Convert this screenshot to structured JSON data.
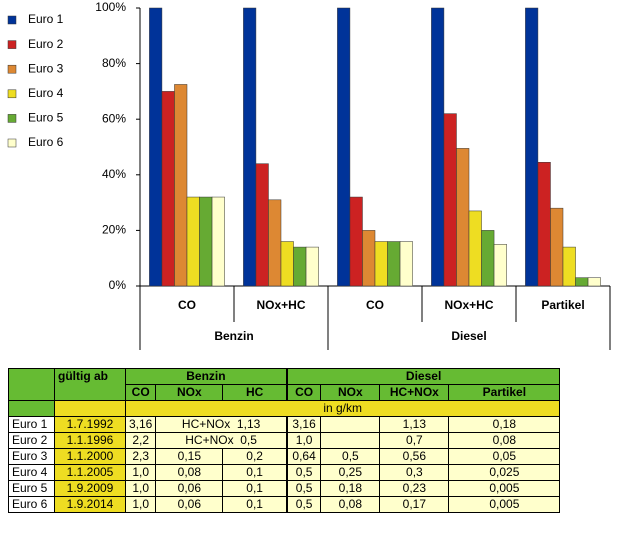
{
  "chart_data": {
    "type": "bar",
    "groups": [
      {
        "name": "Benzin",
        "categories": [
          "CO",
          "NOx+HC"
        ]
      },
      {
        "name": "Diesel",
        "categories": [
          "CO",
          "NOx+HC",
          "Partikel"
        ]
      }
    ],
    "series": [
      {
        "name": "Euro 1",
        "color": "#003399",
        "values": [
          100,
          100,
          100,
          100,
          100
        ]
      },
      {
        "name": "Euro 2",
        "color": "#cc2222",
        "values": [
          70,
          44,
          32,
          62,
          44.5
        ]
      },
      {
        "name": "Euro 3",
        "color": "#dd8833",
        "values": [
          72.5,
          31,
          20,
          49.5,
          28
        ]
      },
      {
        "name": "Euro 4",
        "color": "#eedd22",
        "values": [
          32,
          16,
          16,
          27,
          14
        ]
      },
      {
        "name": "Euro 5",
        "color": "#66aa33",
        "values": [
          32,
          14,
          16,
          20,
          3
        ]
      },
      {
        "name": "Euro 6",
        "color": "#ffffcc",
        "values": [
          32,
          14,
          16,
          15,
          3
        ]
      }
    ],
    "ylim": [
      0,
      100
    ],
    "yticks": [
      {
        "value": 0,
        "label": "0%"
      },
      {
        "value": 20,
        "label": "20%"
      },
      {
        "value": 40,
        "label": "40%"
      },
      {
        "value": 60,
        "label": "60%"
      },
      {
        "value": 80,
        "label": "80%"
      },
      {
        "value": 100,
        "label": "100%"
      }
    ]
  },
  "table": {
    "corner_header": "gültig ab",
    "groups": [
      "Benzin",
      "Diesel"
    ],
    "subheaders": [
      [
        "CO",
        "NOx",
        "HC"
      ],
      [
        "CO",
        "NOx",
        "HC+NOx",
        "Partikel"
      ]
    ],
    "unit": "in g/km",
    "rows": [
      {
        "label": "Euro 1",
        "date": "1.7.1992",
        "cells": [
          [
            "3,16",
            "HC+NOx  1,13"
          ],
          [
            "3,16",
            null,
            "1,13",
            "0,18"
          ]
        ]
      },
      {
        "label": "Euro 2",
        "date": "1.1.1996",
        "cells": [
          [
            "2,2",
            "HC+NOx  0,5"
          ],
          [
            "1,0",
            null,
            "0,7",
            "0,08"
          ]
        ]
      },
      {
        "label": "Euro 3",
        "date": "1.1.2000",
        "cells": [
          [
            "2,3",
            "0,15",
            "0,2"
          ],
          [
            "0,64",
            "0,5",
            "0,56",
            "0,05"
          ]
        ]
      },
      {
        "label": "Euro 4",
        "date": "1.1.2005",
        "cells": [
          [
            "1,0",
            "0,08",
            "0,1"
          ],
          [
            "0,5",
            "0,25",
            "0,3",
            "0,025"
          ]
        ]
      },
      {
        "label": "Euro 5",
        "date": "1.9.2009",
        "cells": [
          [
            "1,0",
            "0,06",
            "0,1"
          ],
          [
            "0,5",
            "0,18",
            "0,23",
            "0,005"
          ]
        ]
      },
      {
        "label": "Euro 6",
        "date": "1.9.2014",
        "cells": [
          [
            "1,0",
            "0,06",
            "0,1"
          ],
          [
            "0,5",
            "0,08",
            "0,17",
            "0,005"
          ]
        ]
      }
    ]
  }
}
